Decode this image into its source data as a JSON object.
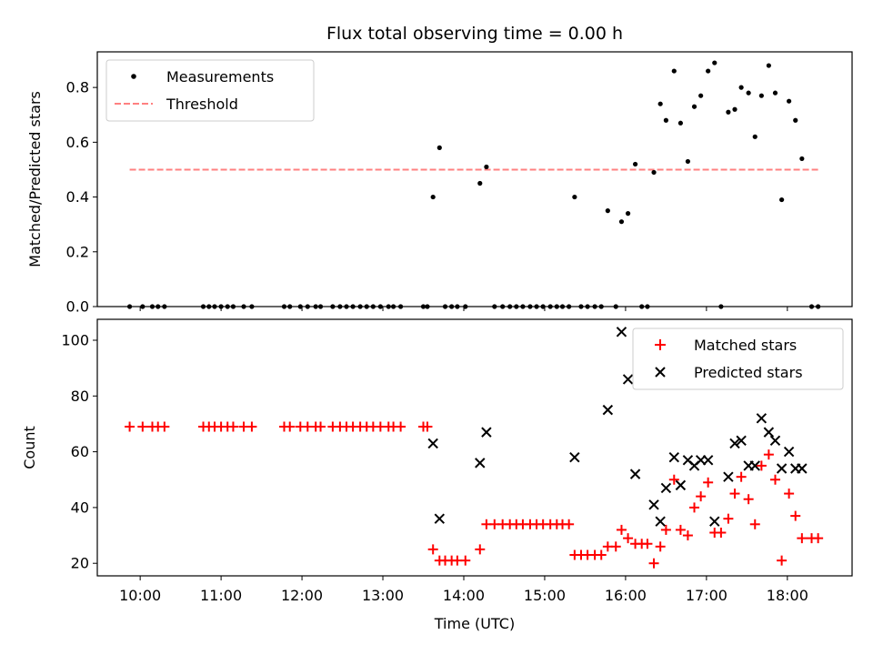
{
  "chart_data": [
    {
      "type": "scatter",
      "title": "Flux total observing time = 0.00 h",
      "xlabel": "",
      "ylabel": "Matched/Predicted stars",
      "ylim": [
        0,
        0.93
      ],
      "yticks": [
        "0.0",
        "0.2",
        "0.4",
        "0.6",
        "0.8"
      ],
      "legend_position": "top-left",
      "series": [
        {
          "name": "Measurements",
          "marker": "dot",
          "color": "#000000",
          "points": [
            [
              9.87,
              0
            ],
            [
              10.03,
              0
            ],
            [
              10.15,
              0
            ],
            [
              10.22,
              0
            ],
            [
              10.3,
              0
            ],
            [
              10.78,
              0
            ],
            [
              10.85,
              0
            ],
            [
              10.92,
              0
            ],
            [
              11.0,
              0
            ],
            [
              11.08,
              0
            ],
            [
              11.15,
              0
            ],
            [
              11.28,
              0
            ],
            [
              11.38,
              0
            ],
            [
              11.78,
              0
            ],
            [
              11.85,
              0
            ],
            [
              11.98,
              0
            ],
            [
              12.07,
              0
            ],
            [
              12.17,
              0
            ],
            [
              12.23,
              0
            ],
            [
              12.38,
              0
            ],
            [
              12.47,
              0
            ],
            [
              12.55,
              0
            ],
            [
              12.63,
              0
            ],
            [
              12.72,
              0
            ],
            [
              12.8,
              0
            ],
            [
              12.88,
              0
            ],
            [
              12.97,
              0
            ],
            [
              13.07,
              0
            ],
            [
              13.13,
              0
            ],
            [
              13.22,
              0
            ],
            [
              13.5,
              0
            ],
            [
              13.55,
              0
            ],
            [
              13.62,
              0.4
            ],
            [
              13.7,
              0.58
            ],
            [
              13.77,
              0
            ],
            [
              13.85,
              0
            ],
            [
              13.92,
              0
            ],
            [
              14.02,
              0
            ],
            [
              14.2,
              0.45
            ],
            [
              14.28,
              0.51
            ],
            [
              14.38,
              0
            ],
            [
              14.48,
              0
            ],
            [
              14.57,
              0
            ],
            [
              14.65,
              0
            ],
            [
              14.73,
              0
            ],
            [
              14.82,
              0
            ],
            [
              14.9,
              0
            ],
            [
              14.98,
              0
            ],
            [
              15.07,
              0
            ],
            [
              15.15,
              0
            ],
            [
              15.22,
              0
            ],
            [
              15.3,
              0
            ],
            [
              15.37,
              0.4
            ],
            [
              15.45,
              0
            ],
            [
              15.53,
              0
            ],
            [
              15.62,
              0
            ],
            [
              15.7,
              0
            ],
            [
              15.78,
              0.35
            ],
            [
              15.88,
              0
            ],
            [
              15.95,
              0.31
            ],
            [
              16.03,
              0.34
            ],
            [
              16.12,
              0.52
            ],
            [
              16.2,
              0
            ],
            [
              16.27,
              0
            ],
            [
              16.35,
              0.49
            ],
            [
              16.43,
              0.74
            ],
            [
              16.5,
              0.68
            ],
            [
              16.6,
              0.86
            ],
            [
              16.68,
              0.67
            ],
            [
              16.77,
              0.53
            ],
            [
              16.85,
              0.73
            ],
            [
              16.93,
              0.77
            ],
            [
              17.02,
              0.86
            ],
            [
              17.1,
              0.89
            ],
            [
              17.18,
              0
            ],
            [
              17.27,
              0.71
            ],
            [
              17.35,
              0.72
            ],
            [
              17.43,
              0.8
            ],
            [
              17.52,
              0.78
            ],
            [
              17.6,
              0.62
            ],
            [
              17.68,
              0.77
            ],
            [
              17.77,
              0.88
            ],
            [
              17.85,
              0.78
            ],
            [
              17.93,
              0.39
            ],
            [
              18.02,
              0.75
            ],
            [
              18.1,
              0.68
            ],
            [
              18.18,
              0.54
            ],
            [
              18.3,
              0
            ],
            [
              18.38,
              0
            ]
          ]
        },
        {
          "name": "Threshold",
          "style": "dashed",
          "color": "#ff8080",
          "x": [
            9.87,
            18.38
          ],
          "values": [
            0.5,
            0.5
          ]
        }
      ]
    },
    {
      "type": "scatter",
      "title": "",
      "xlabel": "Time (UTC)",
      "ylabel": "Count",
      "xlim": [
        9.47,
        18.8
      ],
      "ylim": [
        15.5,
        107.5
      ],
      "xticks": [
        {
          "v": 10,
          "label": "10:00"
        },
        {
          "v": 11,
          "label": "11:00"
        },
        {
          "v": 12,
          "label": "12:00"
        },
        {
          "v": 13,
          "label": "13:00"
        },
        {
          "v": 14,
          "label": "14:00"
        },
        {
          "v": 15,
          "label": "15:00"
        },
        {
          "v": 16,
          "label": "16:00"
        },
        {
          "v": 17,
          "label": "17:00"
        },
        {
          "v": 18,
          "label": "18:00"
        }
      ],
      "yticks": [
        "20",
        "40",
        "60",
        "80",
        "100"
      ],
      "legend_position": "top-right",
      "series": [
        {
          "name": "Matched stars",
          "marker": "plus",
          "color": "#ff0000",
          "points": [
            [
              9.87,
              69
            ],
            [
              10.03,
              69
            ],
            [
              10.15,
              69
            ],
            [
              10.22,
              69
            ],
            [
              10.3,
              69
            ],
            [
              10.78,
              69
            ],
            [
              10.85,
              69
            ],
            [
              10.92,
              69
            ],
            [
              11.0,
              69
            ],
            [
              11.08,
              69
            ],
            [
              11.15,
              69
            ],
            [
              11.28,
              69
            ],
            [
              11.38,
              69
            ],
            [
              11.78,
              69
            ],
            [
              11.85,
              69
            ],
            [
              11.98,
              69
            ],
            [
              12.07,
              69
            ],
            [
              12.17,
              69
            ],
            [
              12.23,
              69
            ],
            [
              12.38,
              69
            ],
            [
              12.47,
              69
            ],
            [
              12.55,
              69
            ],
            [
              12.63,
              69
            ],
            [
              12.72,
              69
            ],
            [
              12.8,
              69
            ],
            [
              12.88,
              69
            ],
            [
              12.97,
              69
            ],
            [
              13.07,
              69
            ],
            [
              13.13,
              69
            ],
            [
              13.22,
              69
            ],
            [
              13.5,
              69
            ],
            [
              13.55,
              69
            ],
            [
              13.62,
              25
            ],
            [
              13.7,
              21
            ],
            [
              13.77,
              21
            ],
            [
              13.85,
              21
            ],
            [
              13.92,
              21
            ],
            [
              14.02,
              21
            ],
            [
              14.2,
              25
            ],
            [
              14.28,
              34
            ],
            [
              14.38,
              34
            ],
            [
              14.48,
              34
            ],
            [
              14.57,
              34
            ],
            [
              14.65,
              34
            ],
            [
              14.73,
              34
            ],
            [
              14.82,
              34
            ],
            [
              14.9,
              34
            ],
            [
              14.98,
              34
            ],
            [
              15.07,
              34
            ],
            [
              15.15,
              34
            ],
            [
              15.22,
              34
            ],
            [
              15.3,
              34
            ],
            [
              15.37,
              23
            ],
            [
              15.45,
              23
            ],
            [
              15.53,
              23
            ],
            [
              15.62,
              23
            ],
            [
              15.7,
              23
            ],
            [
              15.78,
              26
            ],
            [
              15.88,
              26
            ],
            [
              15.95,
              32
            ],
            [
              16.03,
              29
            ],
            [
              16.12,
              27
            ],
            [
              16.2,
              27
            ],
            [
              16.27,
              27
            ],
            [
              16.35,
              20
            ],
            [
              16.43,
              26
            ],
            [
              16.5,
              32
            ],
            [
              16.6,
              50
            ],
            [
              16.68,
              32
            ],
            [
              16.77,
              30
            ],
            [
              16.85,
              40
            ],
            [
              16.93,
              44
            ],
            [
              17.02,
              49
            ],
            [
              17.1,
              31
            ],
            [
              17.18,
              31
            ],
            [
              17.27,
              36
            ],
            [
              17.35,
              45
            ],
            [
              17.43,
              51
            ],
            [
              17.52,
              43
            ],
            [
              17.6,
              34
            ],
            [
              17.68,
              55
            ],
            [
              17.77,
              59
            ],
            [
              17.85,
              50
            ],
            [
              17.93,
              21
            ],
            [
              18.02,
              45
            ],
            [
              18.1,
              37
            ],
            [
              18.18,
              29
            ],
            [
              18.3,
              29
            ],
            [
              18.38,
              29
            ]
          ]
        },
        {
          "name": "Predicted stars",
          "marker": "x",
          "color": "#000000",
          "points": [
            [
              13.62,
              63
            ],
            [
              13.7,
              36
            ],
            [
              14.2,
              56
            ],
            [
              14.28,
              67
            ],
            [
              15.37,
              58
            ],
            [
              15.78,
              75
            ],
            [
              15.95,
              103
            ],
            [
              16.03,
              86
            ],
            [
              16.12,
              52
            ],
            [
              16.35,
              41
            ],
            [
              16.43,
              35
            ],
            [
              16.5,
              47
            ],
            [
              16.6,
              58
            ],
            [
              16.68,
              48
            ],
            [
              16.77,
              57
            ],
            [
              16.85,
              55
            ],
            [
              16.93,
              57
            ],
            [
              17.02,
              57
            ],
            [
              17.1,
              35
            ],
            [
              17.27,
              51
            ],
            [
              17.35,
              63
            ],
            [
              17.43,
              64
            ],
            [
              17.52,
              55
            ],
            [
              17.6,
              55
            ],
            [
              17.68,
              72
            ],
            [
              17.77,
              67
            ],
            [
              17.85,
              64
            ],
            [
              17.93,
              54
            ],
            [
              18.02,
              60
            ],
            [
              18.1,
              54
            ],
            [
              18.18,
              54
            ]
          ]
        }
      ]
    }
  ]
}
